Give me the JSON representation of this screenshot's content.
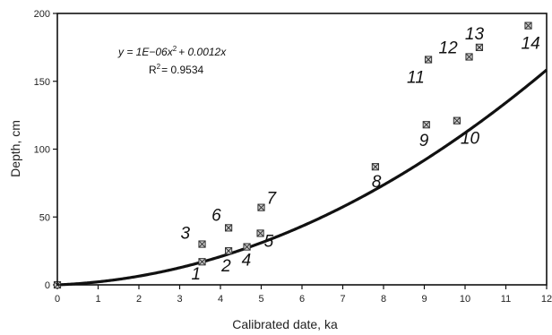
{
  "chart_data": {
    "type": "scatter",
    "xlabel": "Calibrated date, ka",
    "ylabel": "Depth, cm",
    "xlim": [
      0,
      12
    ],
    "ylim": [
      0,
      200
    ],
    "xticks": [
      0,
      1,
      2,
      3,
      4,
      5,
      6,
      7,
      8,
      9,
      10,
      11,
      12
    ],
    "yticks": [
      0,
      50,
      100,
      150,
      200
    ],
    "grid": false,
    "points": [
      {
        "label": "",
        "x": 0.0,
        "y": 0
      },
      {
        "label": "1",
        "x": 3.55,
        "y": 17
      },
      {
        "label": "2",
        "x": 4.2,
        "y": 25
      },
      {
        "label": "3",
        "x": 3.55,
        "y": 30
      },
      {
        "label": "4",
        "x": 4.65,
        "y": 28
      },
      {
        "label": "5",
        "x": 4.98,
        "y": 38
      },
      {
        "label": "6",
        "x": 4.2,
        "y": 42
      },
      {
        "label": "7",
        "x": 5.0,
        "y": 57
      },
      {
        "label": "8",
        "x": 7.8,
        "y": 87
      },
      {
        "label": "9",
        "x": 9.05,
        "y": 118
      },
      {
        "label": "10",
        "x": 9.8,
        "y": 121
      },
      {
        "label": "11",
        "x": 9.1,
        "y": 166
      },
      {
        "label": "12",
        "x": 10.1,
        "y": 168
      },
      {
        "label": "13",
        "x": 10.35,
        "y": 175
      },
      {
        "label": "14",
        "x": 11.55,
        "y": 191
      }
    ],
    "trendline": {
      "type": "polynomial",
      "a": 1e-06,
      "b": 0.0012,
      "equation_text": "y = 1E−06x",
      "equation_exp": "2",
      "equation_rest": "+ 0.0012x",
      "r2_prefix": "R",
      "r2_exp": "2",
      "r2_value": "= 0.9534"
    }
  }
}
